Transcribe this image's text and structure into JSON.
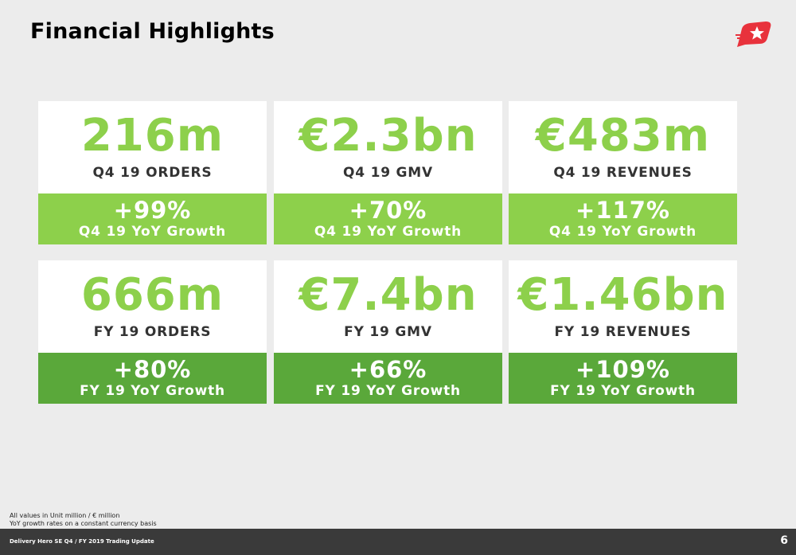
{
  "title": "Financial Highlights",
  "logo_icon": "delivery-hero-logo",
  "colors": {
    "value_green": "#8dd04b",
    "row1_band": "#8dd04b",
    "row2_band": "#5aa83a",
    "logo_red": "#e8323c",
    "footer_bg": "#3a3a3a"
  },
  "cards": [
    {
      "value": "216m",
      "label": "Q4 19 ORDERS",
      "growth": "+99%",
      "growth_label": "Q4 19 YoY Growth"
    },
    {
      "value": "€2.3bn",
      "label": "Q4 19 GMV",
      "growth": "+70%",
      "growth_label": "Q4 19 YoY Growth"
    },
    {
      "value": "€483m",
      "label": "Q4 19 REVENUES",
      "growth": "+117%",
      "growth_label": "Q4 19 YoY Growth"
    },
    {
      "value": "666m",
      "label": "FY 19 ORDERS",
      "growth": "+80%",
      "growth_label": "FY 19 YoY Growth"
    },
    {
      "value": "€7.4bn",
      "label": "FY 19 GMV",
      "growth": "+66%",
      "growth_label": "FY 19 YoY Growth"
    },
    {
      "value": "€1.46bn",
      "label": "FY 19 REVENUES",
      "growth": "+109%",
      "growth_label": "FY 19 YoY Growth"
    }
  ],
  "footnotes": [
    "All values in Unit million / € million",
    "YoY growth rates on a constant currency basis"
  ],
  "footer": {
    "text": "Delivery Hero SE Q4 / FY 2019 Trading Update",
    "page": "6"
  }
}
